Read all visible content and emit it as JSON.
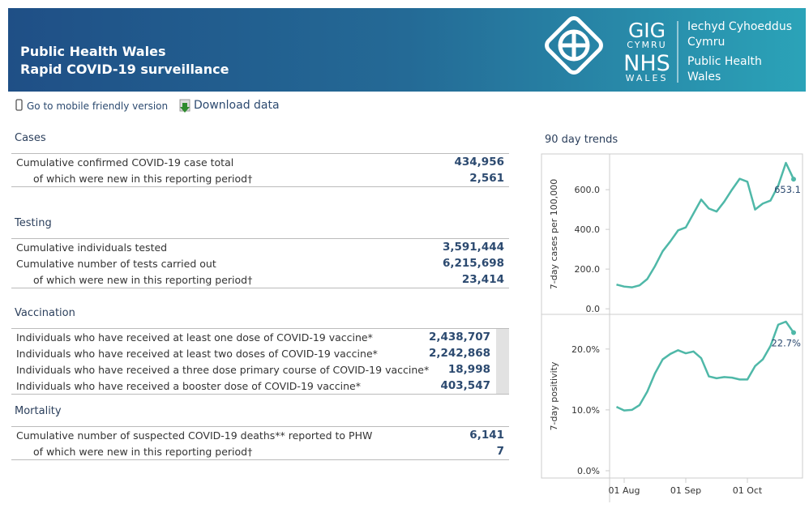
{
  "header": {
    "title": [
      "Public Health Wales",
      "Rapid COVID-19 surveillance"
    ],
    "logo": {
      "gig": "GIG",
      "cymru": "CYMRU",
      "nhs": "NHS",
      "wales": "WALES",
      "welsh_name": [
        "Iechyd Cyhoeddus",
        "Cymru"
      ],
      "english_name": [
        "Public Health",
        "Wales"
      ]
    }
  },
  "links": {
    "mobile": "Go to mobile friendly version",
    "download": "Download data"
  },
  "sections": [
    {
      "title": "Cases",
      "rows": [
        {
          "label": "Cumulative confirmed COVID-19 case total",
          "value": "434,956"
        }
      ],
      "sub": {
        "label": "of which were new in this reporting period†",
        "value": "2,561"
      }
    },
    {
      "title": "Testing",
      "rows": [
        {
          "label": "Cumulative individuals tested",
          "value": "3,591,444"
        },
        {
          "label": "Cumulative number of tests carried out",
          "value": "6,215,698"
        }
      ],
      "sub": {
        "label": "of which were new in this reporting period†",
        "value": "23,414"
      }
    },
    {
      "title": "Vaccination",
      "rows": [
        {
          "label": "Individuals who have received at least one dose of COVID-19 vaccine*",
          "value": "2,438,707"
        },
        {
          "label": "Individuals who have received at least two doses of COVID-19 vaccine*",
          "value": "2,242,868"
        },
        {
          "label": "Individuals who have received a three dose primary course of COVID-19 vaccine*",
          "value": "18,998"
        },
        {
          "label": "Individuals who have received a booster dose of COVID-19 vaccine*",
          "value": "403,547"
        }
      ]
    },
    {
      "title": "Mortality",
      "rows": [
        {
          "label": "Cumulative number of suspected COVID-19 deaths** reported to PHW",
          "value": "6,141"
        }
      ],
      "sub": {
        "label": "of which were new in this reporting period†",
        "value": "7"
      }
    }
  ],
  "trends_title": "90 day trends",
  "chart_data": [
    {
      "type": "line",
      "y_label": "7-day cases per 100,000",
      "color": "#4fb8a8",
      "x": [
        "28 Jul",
        "01 Aug",
        "05 Aug",
        "09 Aug",
        "13 Aug",
        "16 Aug",
        "20 Aug",
        "24 Aug",
        "28 Aug",
        "01 Sep",
        "05 Sep",
        "09 Sep",
        "12 Sep",
        "16 Sep",
        "20 Sep",
        "24 Sep",
        "27 Sep",
        "01 Oct",
        "05 Oct",
        "09 Oct",
        "12 Oct",
        "16 Oct",
        "20 Oct",
        "24 Oct"
      ],
      "values": [
        122,
        112,
        108,
        118,
        150,
        215,
        290,
        340,
        395,
        410,
        480,
        550,
        505,
        490,
        540,
        600,
        655,
        640,
        500,
        530,
        545,
        620,
        735,
        653.1
      ],
      "value_labels": [
        null,
        null,
        null,
        null,
        null,
        null,
        null,
        null,
        null,
        null,
        null,
        null,
        null,
        null,
        null,
        null,
        null,
        null,
        null,
        null,
        null,
        null,
        null,
        "653.1"
      ],
      "ylim": [
        -28,
        780
      ],
      "yticks": [
        {
          "value": 0,
          "label": "0.0"
        },
        {
          "value": 200,
          "label": "200.0"
        },
        {
          "value": 400,
          "label": "400.0"
        },
        {
          "value": 600,
          "label": "600.0"
        }
      ]
    },
    {
      "type": "line",
      "y_label": "7-day positivity",
      "color": "#4fb8a8",
      "x": [
        "28 Jul",
        "01 Aug",
        "05 Aug",
        "09 Aug",
        "13 Aug",
        "16 Aug",
        "20 Aug",
        "24 Aug",
        "28 Aug",
        "01 Sep",
        "05 Sep",
        "09 Sep",
        "12 Sep",
        "16 Sep",
        "20 Sep",
        "24 Sep",
        "27 Sep",
        "01 Oct",
        "05 Oct",
        "09 Oct",
        "12 Oct",
        "16 Oct",
        "20 Oct",
        "24 Oct"
      ],
      "values": [
        10.5,
        9.9,
        10.0,
        10.8,
        13.0,
        16.0,
        18.3,
        19.2,
        19.8,
        19.3,
        19.6,
        18.5,
        15.5,
        15.2,
        15.4,
        15.3,
        15.0,
        15.0,
        17.2,
        18.3,
        20.5,
        24.0,
        24.5,
        22.7
      ],
      "value_labels": [
        null,
        null,
        null,
        null,
        null,
        null,
        null,
        null,
        null,
        null,
        null,
        null,
        null,
        null,
        null,
        null,
        null,
        null,
        null,
        null,
        null,
        null,
        null,
        "22.7%"
      ],
      "ylim": [
        -1.2,
        25.7
      ],
      "yticks": [
        {
          "value": 0,
          "label": "0.0%"
        },
        {
          "value": 10,
          "label": "10.0%"
        },
        {
          "value": 20,
          "label": "20.0%"
        }
      ],
      "xticks": [
        "01 Aug",
        "01 Sep",
        "01 Oct"
      ]
    }
  ]
}
